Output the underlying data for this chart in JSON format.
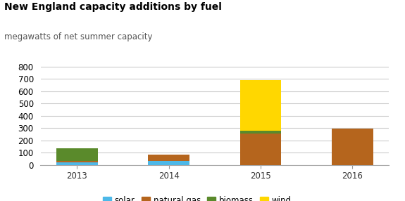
{
  "title": "New England capacity additions by fuel",
  "subtitle": "megawatts of net summer capacity",
  "years": [
    "2013",
    "2014",
    "2015",
    "2016"
  ],
  "solar": [
    20,
    30,
    0,
    0
  ],
  "natural_gas": [
    10,
    55,
    255,
    295
  ],
  "biomass": [
    105,
    0,
    20,
    0
  ],
  "wind": [
    0,
    0,
    415,
    0
  ],
  "colors": {
    "solar": "#4db8e8",
    "natural_gas": "#b5651d",
    "biomass": "#5a8a2b",
    "wind": "#ffd700"
  },
  "ylim": [
    0,
    850
  ],
  "yticks": [
    0,
    100,
    200,
    300,
    400,
    500,
    600,
    700,
    800
  ],
  "bg_color": "#ffffff",
  "grid_color": "#cccccc",
  "title_fontsize": 10,
  "subtitle_fontsize": 8.5,
  "tick_fontsize": 8.5,
  "legend_fontsize": 8.5
}
